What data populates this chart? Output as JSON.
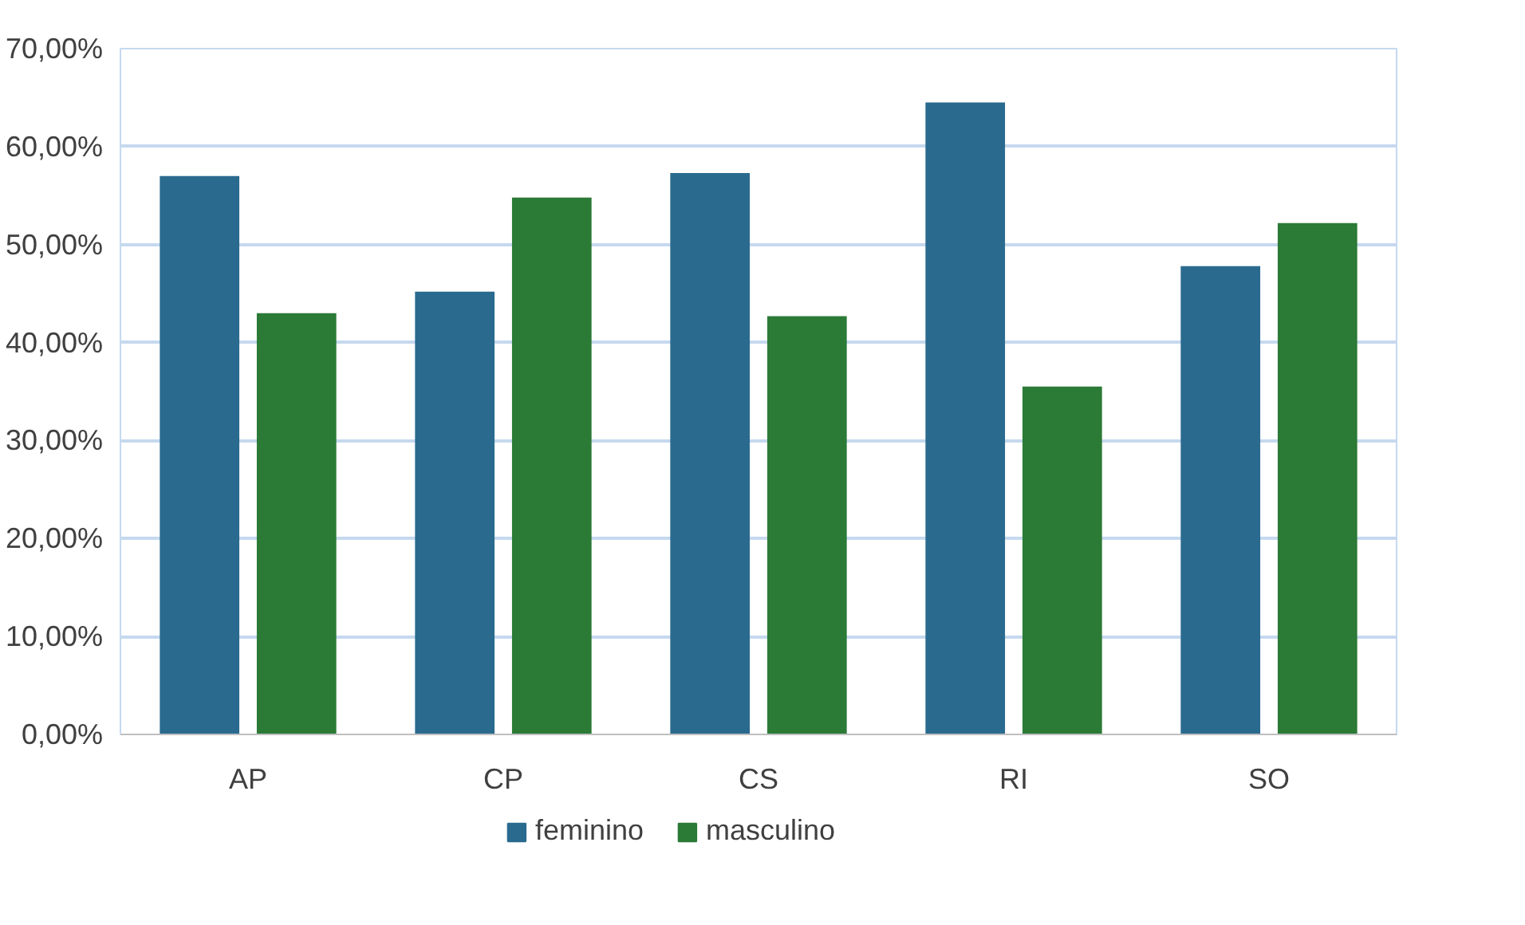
{
  "chart_data": {
    "type": "bar",
    "categories": [
      "AP",
      "CP",
      "CS",
      "RI",
      "SO"
    ],
    "series": [
      {
        "name": "feminino",
        "color": "#2a6a8f",
        "values": [
          57.0,
          45.2,
          57.3,
          64.5,
          47.8
        ]
      },
      {
        "name": "masculino",
        "color": "#2b7a36",
        "values": [
          43.0,
          54.8,
          42.7,
          35.5,
          52.2
        ]
      }
    ],
    "ylim": [
      0,
      70
    ],
    "yticks": [
      {
        "value": 0,
        "label": "0,00%"
      },
      {
        "value": 10,
        "label": "10,00%"
      },
      {
        "value": 20,
        "label": "20,00%"
      },
      {
        "value": 30,
        "label": "30,00%"
      },
      {
        "value": 40,
        "label": "40,00%"
      },
      {
        "value": 50,
        "label": "50,00%"
      },
      {
        "value": 60,
        "label": "60,00%"
      },
      {
        "value": 70,
        "label": "70,00%"
      }
    ],
    "grid": "y",
    "legend": "bottom"
  }
}
